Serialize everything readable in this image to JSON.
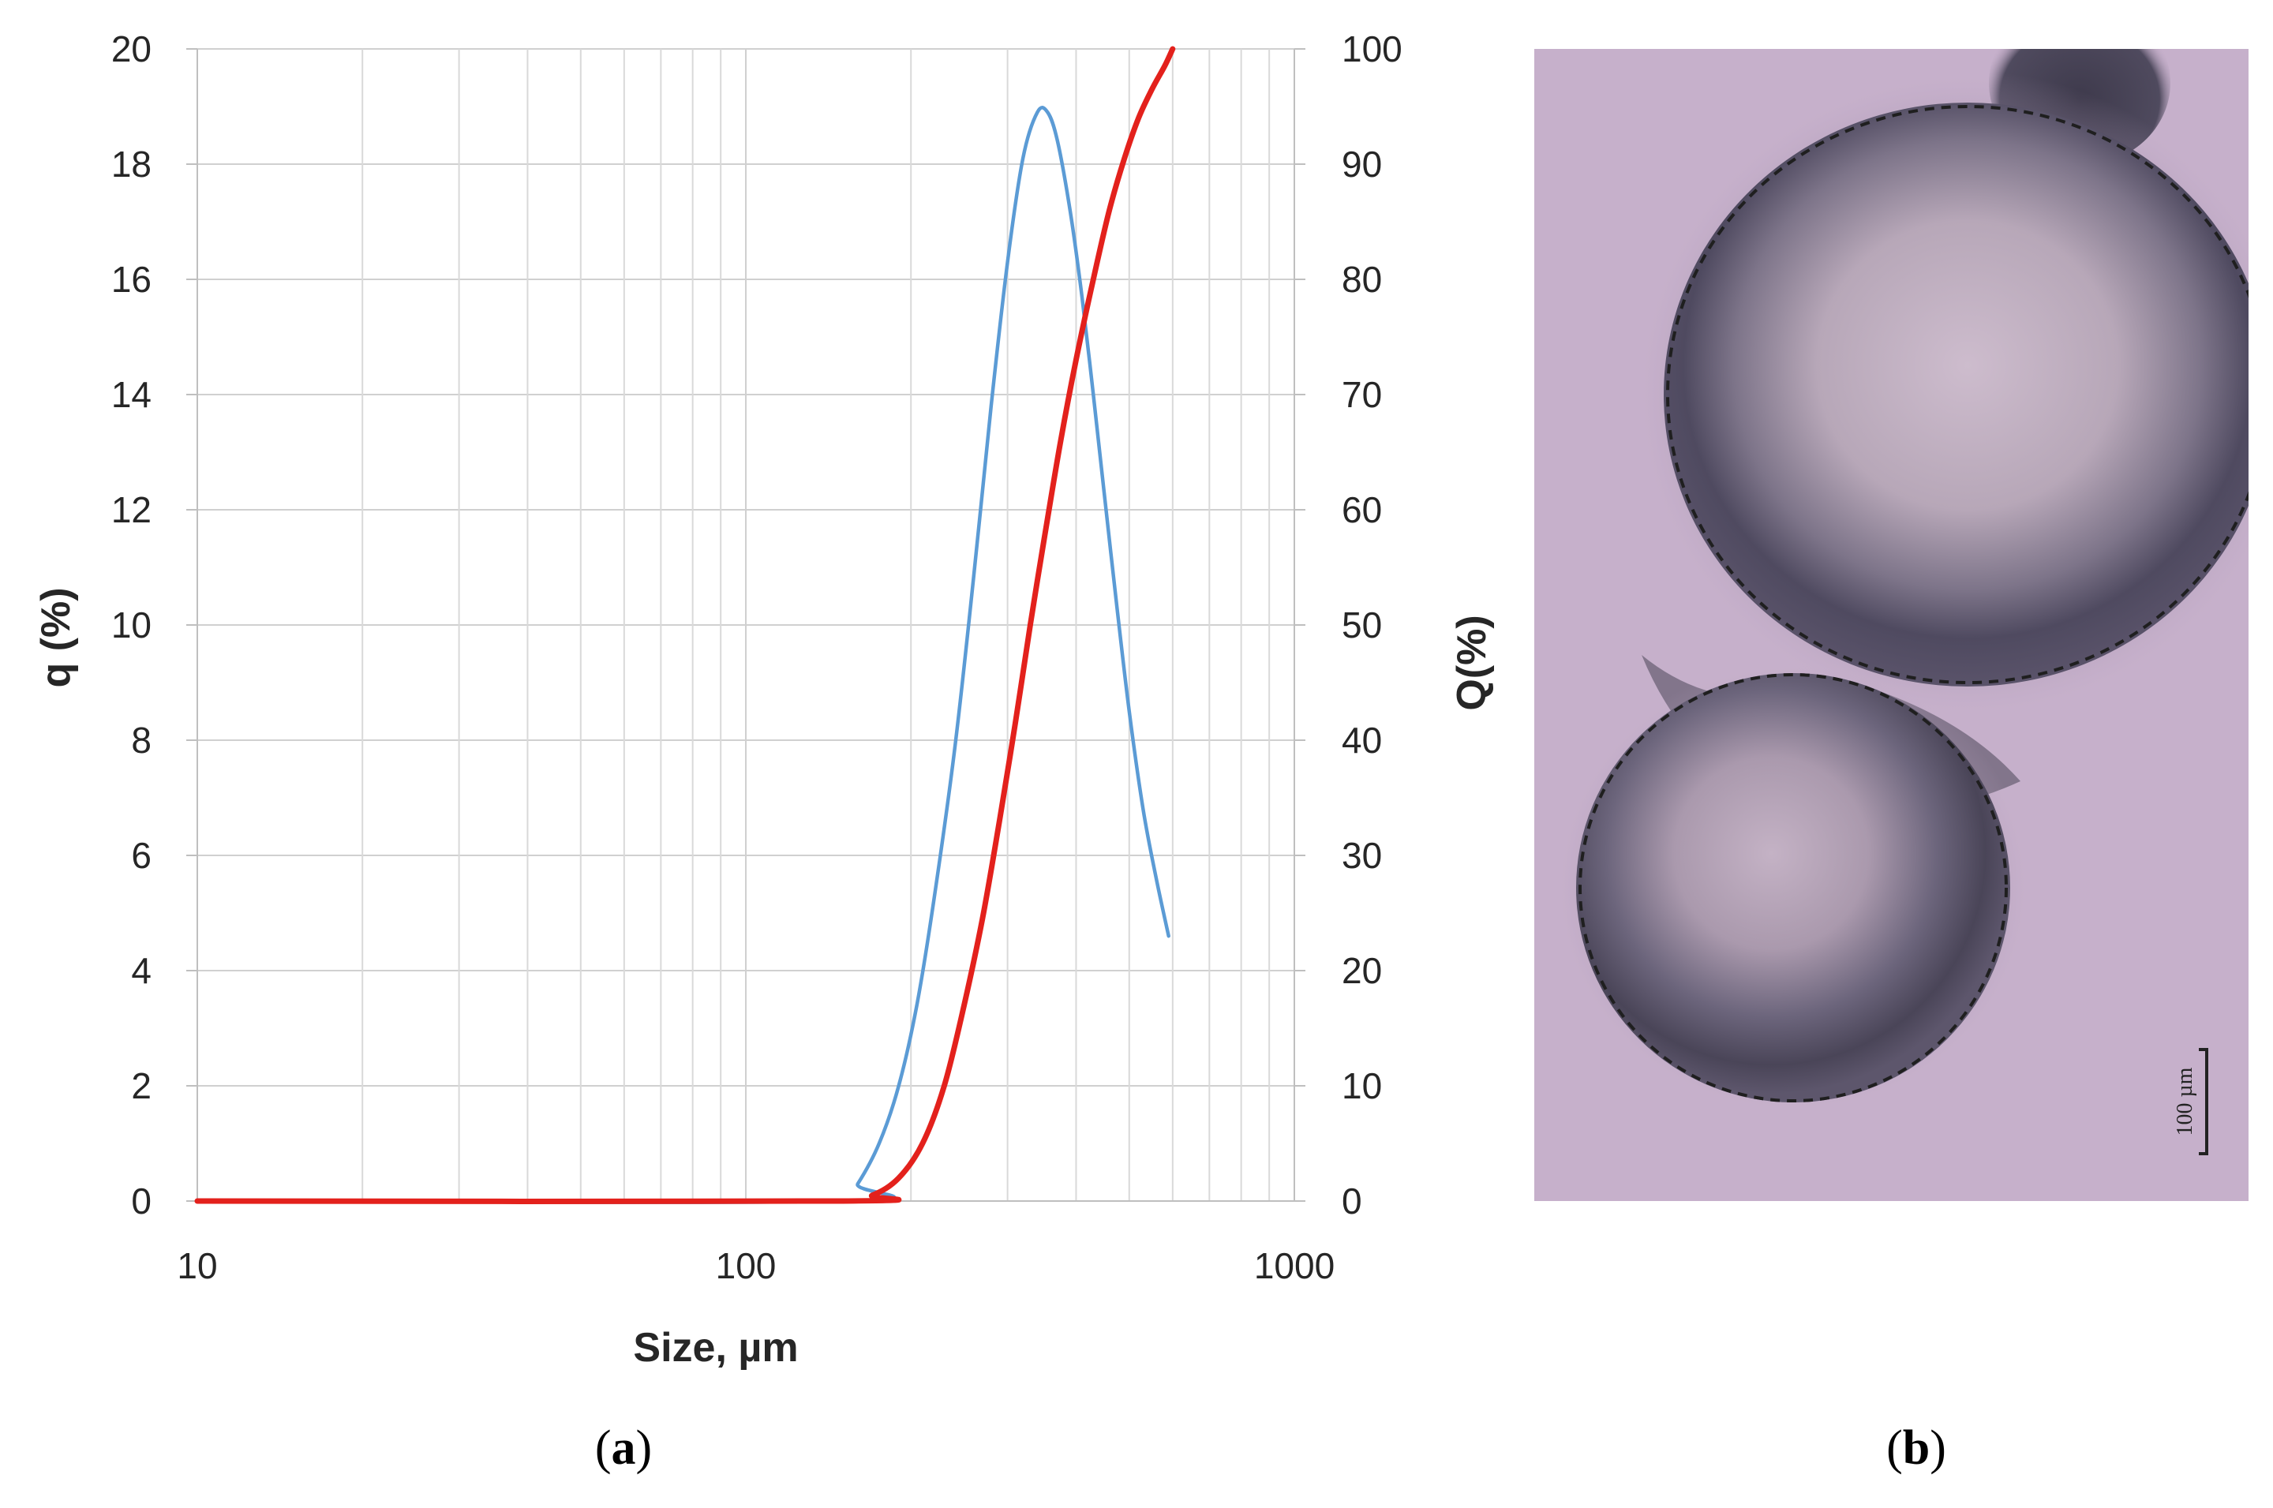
{
  "chart_data": {
    "type": "line",
    "xscale": "log",
    "xlim": [
      10,
      1000
    ],
    "ylim_left": [
      0,
      20
    ],
    "ylim_right": [
      0,
      100
    ],
    "xlabel": "Size, µm",
    "ylabel_left": "q (%)",
    "ylabel_right": "Q(%)",
    "x_ticks": [
      "10",
      "100",
      "1000"
    ],
    "y_ticks_left": [
      "0",
      "2",
      "4",
      "6",
      "8",
      "10",
      "12",
      "14",
      "16",
      "18",
      "20"
    ],
    "y_ticks_right": [
      "0",
      "10",
      "20",
      "30",
      "40",
      "50",
      "60",
      "70",
      "80",
      "90",
      "100"
    ],
    "grid": true,
    "series": [
      {
        "axis": "left",
        "color": "#5b9bd5",
        "x": [
          10,
          150,
          160,
          175,
          190,
          205,
          220,
          240,
          260,
          280,
          300,
          320,
          340,
          355,
          370,
          390,
          410,
          430,
          450,
          475,
          500,
          530,
          560,
          590
        ],
        "y": [
          0,
          0,
          0.3,
          1.0,
          2.0,
          3.4,
          5.2,
          7.8,
          10.8,
          13.8,
          16.3,
          18.1,
          18.9,
          18.9,
          18.4,
          17.2,
          15.7,
          14.0,
          12.3,
          10.3,
          8.5,
          6.8,
          5.6,
          4.6
        ]
      },
      {
        "axis": "right",
        "color": "#e3211c",
        "x": [
          10,
          150,
          170,
          190,
          210,
          230,
          250,
          270,
          290,
          310,
          330,
          350,
          375,
          400,
          430,
          460,
          490,
          520,
          550,
          580,
          600
        ],
        "y": [
          0,
          0,
          0.5,
          2,
          5,
          10,
          17,
          24.5,
          33,
          41.5,
          50,
          57.5,
          66,
          73,
          80,
          86,
          90.5,
          94,
          96.5,
          98.5,
          100
        ]
      }
    ]
  },
  "panel_labels": {
    "a": "a",
    "b": "b"
  },
  "micrograph": {
    "scale_bar_label": "100 µm"
  },
  "colors": {
    "image_background": "#c6b0cb",
    "particle_dark": "#4a4459",
    "particle_core": "#b8a9b9"
  }
}
